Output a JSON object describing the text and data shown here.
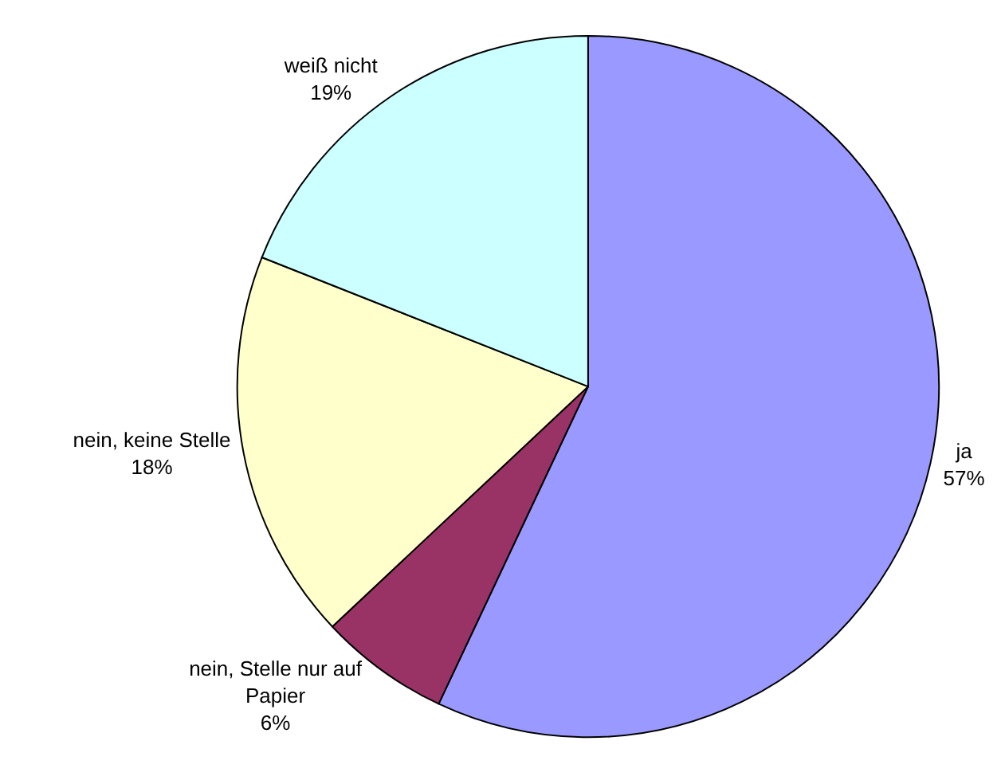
{
  "chart_data": {
    "type": "pie",
    "categories": [
      "ja",
      "nein, Stelle nur auf Papier",
      "nein, keine Stelle",
      "weiß nicht"
    ],
    "values": [
      57,
      6,
      18,
      19
    ],
    "colors": [
      "#9999ff",
      "#993366",
      "#ffffcc",
      "#ccffff"
    ],
    "value_labels": [
      "57%",
      "6%",
      "18%",
      "19%"
    ],
    "legend": false
  }
}
